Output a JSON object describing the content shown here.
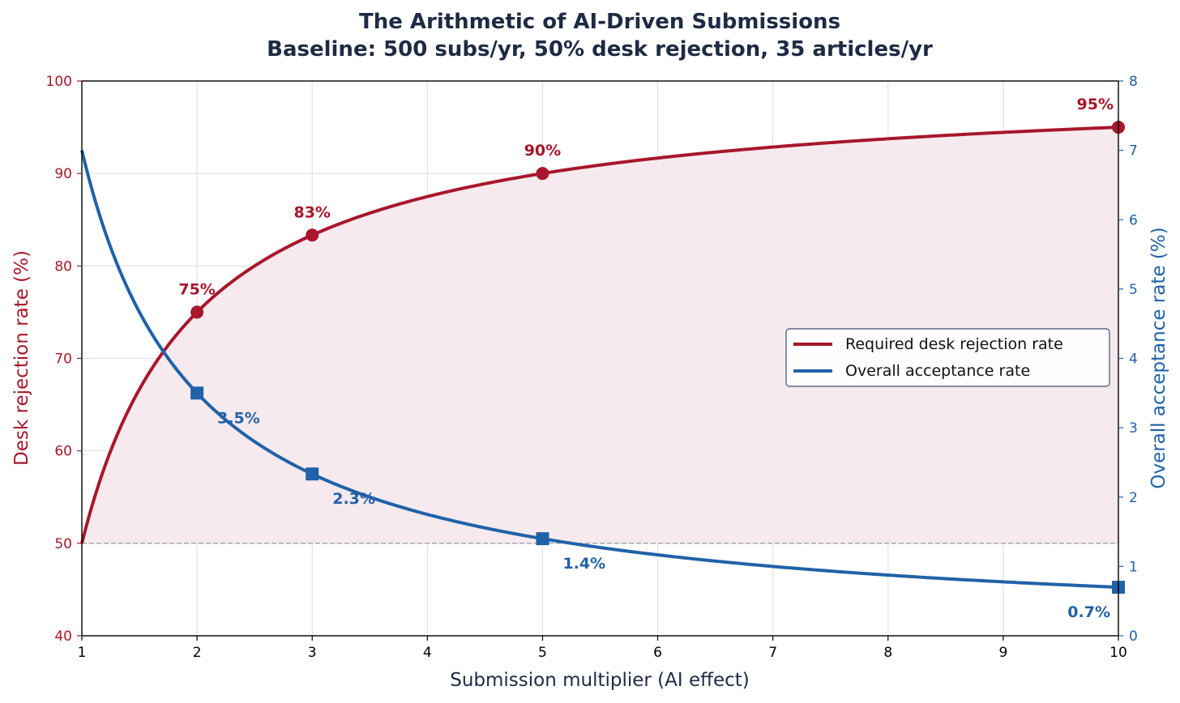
{
  "chart_data": {
    "type": "line",
    "title": "The Arithmetic of AI-Driven Submissions",
    "subtitle": "Baseline: 500 subs/yr, 50% desk rejection, 35 articles/yr",
    "xlabel": "Submission multiplier (AI effect)",
    "ylabel_left": "Desk rejection rate (%)",
    "ylabel_right": "Overall acceptance rate (%)",
    "xlim": [
      1,
      10
    ],
    "ylim_left": [
      40,
      100
    ],
    "ylim_right": [
      0,
      8
    ],
    "x_ticks": [
      "1",
      "2",
      "3",
      "4",
      "5",
      "6",
      "7",
      "8",
      "9",
      "10"
    ],
    "y_left_ticks": [
      "40",
      "50",
      "60",
      "70",
      "80",
      "90",
      "100"
    ],
    "y_right_ticks": [
      "0",
      "1",
      "2",
      "3",
      "4",
      "5",
      "6",
      "7",
      "8"
    ],
    "grid": true,
    "baseline_reference": 50,
    "legend_position": "center-right",
    "colors": {
      "rejection": "#a8172b",
      "acceptance": "#2062a8",
      "fill": "#f6eaee",
      "text": "#1f2a44"
    },
    "series": [
      {
        "name": "Required desk rejection rate",
        "axis": "left",
        "formula": "100*(1-1/(2*x))",
        "markers": [
          {
            "x": 2,
            "y": 75,
            "label": "75%"
          },
          {
            "x": 3,
            "y": 83.3,
            "label": "83%"
          },
          {
            "x": 5,
            "y": 90,
            "label": "90%"
          },
          {
            "x": 10,
            "y": 95,
            "label": "95%"
          }
        ]
      },
      {
        "name": "Overall acceptance rate",
        "axis": "right",
        "formula": "7/x",
        "markers": [
          {
            "x": 2,
            "y": 3.5,
            "label": "3.5%"
          },
          {
            "x": 3,
            "y": 2.33,
            "label": "2.3%"
          },
          {
            "x": 5,
            "y": 1.4,
            "label": "1.4%"
          },
          {
            "x": 10,
            "y": 0.7,
            "label": "0.7%"
          }
        ]
      }
    ]
  }
}
